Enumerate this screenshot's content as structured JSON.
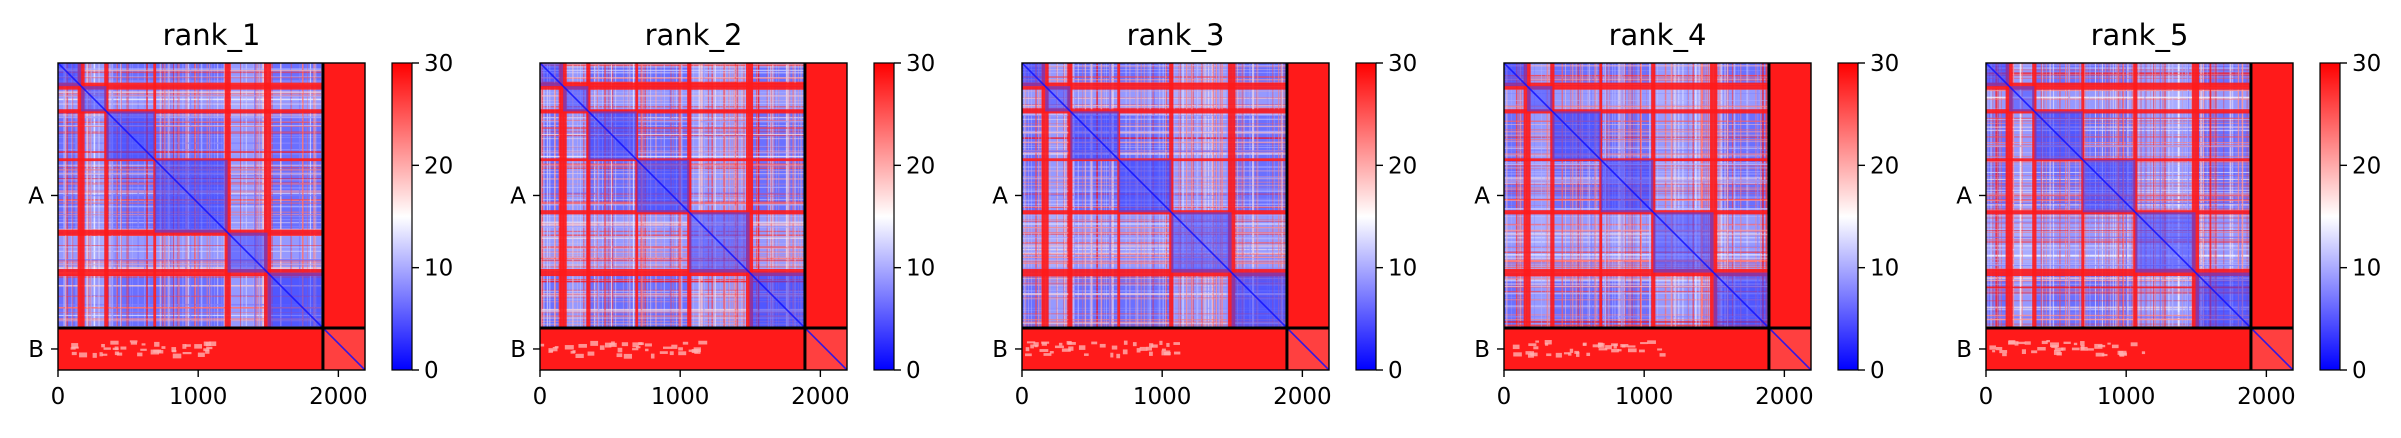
{
  "chart_data": [
    {
      "type": "heatmap",
      "title": "rank_1",
      "x_ticks": [
        0,
        1000,
        2000
      ],
      "y_ticks": [
        "A",
        "B"
      ],
      "chain_boundary": 1890,
      "matrix_size": 2190,
      "colorbar": {
        "ticks": [
          0,
          10,
          20,
          30
        ],
        "range": [
          0,
          30
        ],
        "colors": [
          "#0000ff",
          "#ffffff",
          "#ff0000"
        ]
      },
      "red_bands": [
        [
          140,
          190
        ],
        [
          330,
          360
        ],
        [
          680,
          700
        ],
        [
          1190,
          1230
        ],
        [
          1470,
          1520
        ]
      ],
      "light_bands": [
        [
          190,
          330
        ],
        [
          1230,
          1470
        ]
      ]
    },
    {
      "type": "heatmap",
      "title": "rank_2",
      "x_ticks": [
        0,
        1000,
        2000
      ],
      "y_ticks": [
        "A",
        "B"
      ],
      "chain_boundary": 1890,
      "matrix_size": 2190,
      "colorbar": {
        "ticks": [
          0,
          10,
          20,
          30
        ],
        "range": [
          0,
          30
        ],
        "colors": [
          "#0000ff",
          "#ffffff",
          "#ff0000"
        ]
      },
      "red_bands": [
        [
          140,
          190
        ],
        [
          330,
          360
        ],
        [
          680,
          700
        ],
        [
          1050,
          1080
        ],
        [
          1470,
          1520
        ]
      ],
      "light_bands": [
        [
          190,
          330
        ],
        [
          1080,
          1470
        ]
      ]
    },
    {
      "type": "heatmap",
      "title": "rank_3",
      "x_ticks": [
        0,
        1000,
        2000
      ],
      "y_ticks": [
        "A",
        "B"
      ],
      "chain_boundary": 1890,
      "matrix_size": 2190,
      "colorbar": {
        "ticks": [
          0,
          10,
          20,
          30
        ],
        "range": [
          0,
          30
        ],
        "colors": [
          "#0000ff",
          "#ffffff",
          "#ff0000"
        ]
      },
      "red_bands": [
        [
          140,
          190
        ],
        [
          330,
          360
        ],
        [
          680,
          700
        ],
        [
          1050,
          1080
        ],
        [
          1470,
          1520
        ]
      ],
      "light_bands": [
        [
          190,
          330
        ],
        [
          1080,
          1470
        ]
      ]
    },
    {
      "type": "heatmap",
      "title": "rank_4",
      "x_ticks": [
        0,
        1000,
        2000
      ],
      "y_ticks": [
        "A",
        "B"
      ],
      "chain_boundary": 1890,
      "matrix_size": 2190,
      "colorbar": {
        "ticks": [
          0,
          10,
          20,
          30
        ],
        "range": [
          0,
          30
        ],
        "colors": [
          "#0000ff",
          "#ffffff",
          "#ff0000"
        ]
      },
      "red_bands": [
        [
          140,
          190
        ],
        [
          330,
          360
        ],
        [
          680,
          700
        ],
        [
          1050,
          1080
        ],
        [
          1470,
          1520
        ]
      ],
      "light_bands": [
        [
          190,
          330
        ],
        [
          1080,
          1470
        ]
      ]
    },
    {
      "type": "heatmap",
      "title": "rank_5",
      "x_ticks": [
        0,
        1000,
        2000
      ],
      "y_ticks": [
        "A",
        "B"
      ],
      "chain_boundary": 1890,
      "matrix_size": 2190,
      "colorbar": {
        "ticks": [
          0,
          10,
          20,
          30
        ],
        "range": [
          0,
          30
        ],
        "colors": [
          "#0000ff",
          "#ffffff",
          "#ff0000"
        ]
      },
      "red_bands": [
        [
          140,
          190
        ],
        [
          330,
          360
        ],
        [
          680,
          700
        ],
        [
          1050,
          1080
        ],
        [
          1470,
          1520
        ]
      ],
      "light_bands": [
        [
          190,
          330
        ],
        [
          1080,
          1470
        ]
      ]
    }
  ]
}
